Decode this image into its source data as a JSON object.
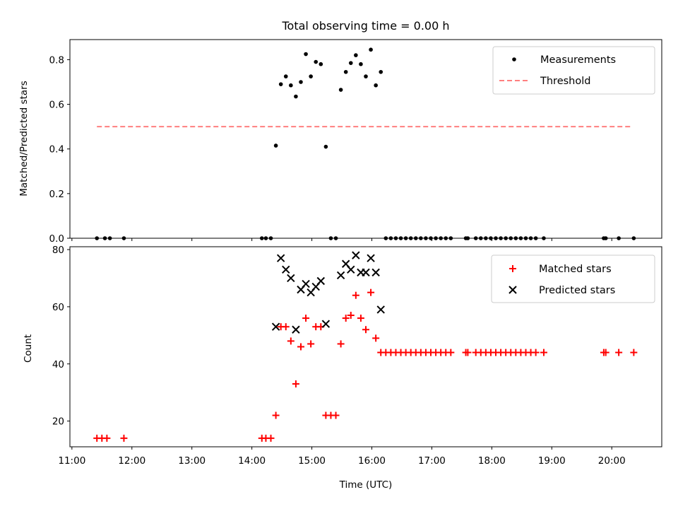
{
  "chart_data": [
    {
      "type": "scatter",
      "title": "Total observing time = 0.00 h",
      "xlabel": "",
      "ylabel": "Matched/Predicted stars",
      "ylim": [
        0,
        0.89
      ],
      "yticks": [
        0.0,
        0.2,
        0.4,
        0.6,
        0.8
      ],
      "ytick_labels": [
        "0.0",
        "0.2",
        "0.4",
        "0.6",
        "0.8"
      ],
      "legend_position": "top-right",
      "series": [
        {
          "name": "Measurements",
          "marker": "dot",
          "color": "#000000",
          "x": [
            "11:25",
            "11:33",
            "11:38",
            "11:52",
            "14:10",
            "14:14",
            "14:19",
            "14:24",
            "14:29",
            "14:34",
            "14:39",
            "14:44",
            "14:49",
            "14:54",
            "14:59",
            "15:04",
            "15:09",
            "15:14",
            "15:19",
            "15:24",
            "15:29",
            "15:34",
            "15:39",
            "15:44",
            "15:49",
            "15:54",
            "15:59",
            "16:04",
            "16:09",
            "16:14",
            "16:19",
            "16:24",
            "16:29",
            "16:34",
            "16:39",
            "16:44",
            "16:49",
            "16:54",
            "16:59",
            "17:04",
            "17:09",
            "17:14",
            "17:19",
            "17:34",
            "17:36",
            "17:44",
            "17:49",
            "17:54",
            "17:59",
            "18:04",
            "18:09",
            "18:14",
            "18:19",
            "18:24",
            "18:29",
            "18:34",
            "18:39",
            "18:44",
            "18:52",
            "19:52",
            "19:54",
            "20:07",
            "20:22"
          ],
          "y": [
            0,
            0,
            0,
            0,
            0,
            0,
            0,
            0.415,
            0.69,
            0.725,
            0.685,
            0.635,
            0.7,
            0.825,
            0.725,
            0.79,
            0.78,
            0.41,
            0,
            0,
            0.665,
            0.745,
            0.785,
            0.82,
            0.78,
            0.725,
            0.845,
            0.685,
            0.745,
            0,
            0,
            0,
            0,
            0,
            0,
            0,
            0,
            0,
            0,
            0,
            0,
            0,
            0,
            0,
            0,
            0,
            0,
            0,
            0,
            0,
            0,
            0,
            0,
            0,
            0,
            0,
            0,
            0,
            0,
            0,
            0,
            0,
            0
          ]
        },
        {
          "name": "Threshold",
          "style": "dashed",
          "color": "#ff7f7f",
          "x": [
            "11:25",
            "20:20"
          ],
          "y": [
            0.5,
            0.5
          ]
        }
      ]
    },
    {
      "type": "scatter",
      "title": "",
      "xlabel": "Time (UTC)",
      "ylabel": "Count",
      "ylim": [
        11,
        81
      ],
      "yticks": [
        20,
        40,
        60,
        80
      ],
      "ytick_labels": [
        "20",
        "40",
        "60",
        "80"
      ],
      "xlim": [
        "10:58",
        "20:50"
      ],
      "xticks": [
        "11:00",
        "12:00",
        "13:00",
        "14:00",
        "15:00",
        "16:00",
        "17:00",
        "18:00",
        "19:00",
        "20:00"
      ],
      "xtick_labels": [
        "11:00",
        "12:00",
        "13:00",
        "14:00",
        "15:00",
        "16:00",
        "17:00",
        "18:00",
        "19:00",
        "20:00"
      ],
      "legend_position": "top-right",
      "series": [
        {
          "name": "Matched stars",
          "marker": "plus",
          "color": "#ff0000",
          "x": [
            "11:25",
            "11:30",
            "11:35",
            "11:52",
            "14:10",
            "14:14",
            "14:19",
            "14:24",
            "14:29",
            "14:34",
            "14:39",
            "14:44",
            "14:49",
            "14:54",
            "14:59",
            "15:04",
            "15:09",
            "15:14",
            "15:19",
            "15:24",
            "15:29",
            "15:34",
            "15:39",
            "15:44",
            "15:49",
            "15:54",
            "15:59",
            "16:04",
            "16:09",
            "16:14",
            "16:19",
            "16:24",
            "16:29",
            "16:34",
            "16:39",
            "16:44",
            "16:49",
            "16:54",
            "16:59",
            "17:04",
            "17:09",
            "17:14",
            "17:19",
            "17:34",
            "17:36",
            "17:44",
            "17:49",
            "17:54",
            "17:59",
            "18:04",
            "18:09",
            "18:14",
            "18:19",
            "18:24",
            "18:29",
            "18:34",
            "18:39",
            "18:44",
            "18:52",
            "19:52",
            "19:54",
            "20:07",
            "20:22"
          ],
          "y": [
            14,
            14,
            14,
            14,
            14,
            14,
            14,
            22,
            53,
            53,
            48,
            33,
            46,
            56,
            47,
            53,
            53,
            22,
            22,
            22,
            47,
            56,
            57,
            64,
            56,
            52,
            65,
            49,
            44,
            44,
            44,
            44,
            44,
            44,
            44,
            44,
            44,
            44,
            44,
            44,
            44,
            44,
            44,
            44,
            44,
            44,
            44,
            44,
            44,
            44,
            44,
            44,
            44,
            44,
            44,
            44,
            44,
            44,
            44,
            44,
            44,
            44,
            44
          ]
        },
        {
          "name": "Predicted stars",
          "marker": "x",
          "color": "#000000",
          "x": [
            "14:24",
            "14:29",
            "14:34",
            "14:39",
            "14:44",
            "14:49",
            "14:54",
            "14:59",
            "15:04",
            "15:09",
            "15:14",
            "15:29",
            "15:34",
            "15:39",
            "15:44",
            "15:49",
            "15:54",
            "15:59",
            "16:04",
            "16:09"
          ],
          "y": [
            53,
            77,
            73,
            70,
            52,
            66,
            68,
            65,
            67,
            69,
            54,
            71,
            75,
            73,
            78,
            72,
            72,
            77,
            72,
            59
          ]
        }
      ]
    }
  ]
}
